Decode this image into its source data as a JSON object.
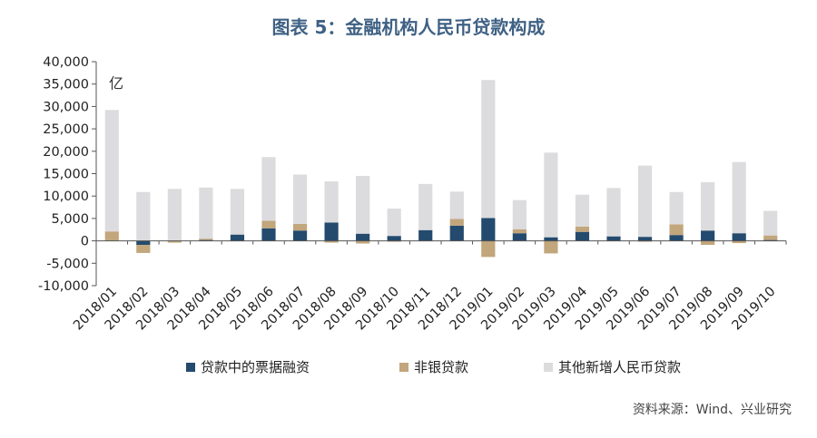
{
  "title": "图表 5：金融机构人民币贷款构成",
  "source": "资料来源：Wind、兴业研究",
  "chart_data": {
    "type": "bar",
    "stacked": true,
    "unit_label": "亿",
    "ylim": [
      -10000,
      40000
    ],
    "yticks": [
      -10000,
      -5000,
      0,
      5000,
      10000,
      15000,
      20000,
      25000,
      30000,
      35000,
      40000
    ],
    "ytick_labels": [
      "-10,000",
      "-5,000",
      "0",
      "5,000",
      "10,000",
      "15,000",
      "20,000",
      "25,000",
      "30,000",
      "35,000",
      "40,000"
    ],
    "categories": [
      "2018/01",
      "2018/02",
      "2018/03",
      "2018/04",
      "2018/05",
      "2018/06",
      "2018/07",
      "2018/08",
      "2018/09",
      "2018/10",
      "2018/11",
      "2018/12",
      "2019/01",
      "2019/02",
      "2019/03",
      "2019/04",
      "2019/05",
      "2019/06",
      "2019/07",
      "2019/08",
      "2019/09",
      "2019/10"
    ],
    "series": [
      {
        "name": "贷款中的票据融资",
        "color": "#244a6e",
        "values": [
          0,
          -900,
          0,
          200,
          1400,
          2800,
          2300,
          4100,
          1600,
          1100,
          2400,
          3400,
          5100,
          1700,
          800,
          2000,
          1000,
          900,
          1300,
          2300,
          1700,
          200
        ]
      },
      {
        "name": "非银贷款",
        "color": "#c2a67c",
        "values": [
          2100,
          -1800,
          -400,
          300,
          -100,
          1700,
          1500,
          -400,
          -600,
          -200,
          -100,
          1500,
          -3600,
          900,
          -2800,
          1200,
          -100,
          -200,
          2400,
          -900,
          -500,
          1000
        ]
      },
      {
        "name": "其他新增人民币贷款",
        "color": "#dcdcde",
        "values": [
          27100,
          10900,
          11600,
          11400,
          10200,
          14200,
          11000,
          9200,
          12900,
          6100,
          10300,
          6100,
          30800,
          6500,
          18900,
          7100,
          10800,
          15900,
          7200,
          10800,
          15900,
          5500
        ]
      }
    ],
    "grid": false,
    "legend_position": "bottom"
  }
}
